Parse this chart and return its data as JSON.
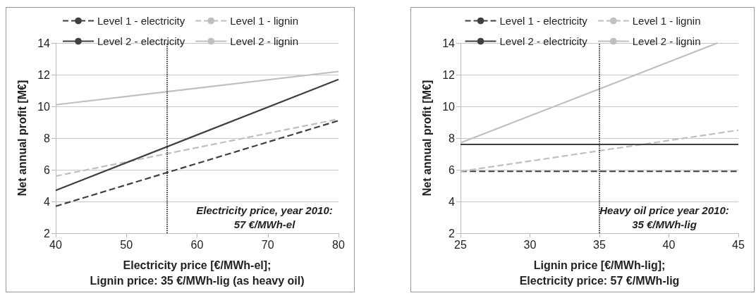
{
  "chart_data": [
    {
      "type": "line",
      "xlabel": "Electricity price [€/MWh-el];\nLignin price: 35 €/MWh-lig (as heavy oil)",
      "ylabel": "Net annual profit [M€]",
      "x": [
        40,
        80
      ],
      "xlim": [
        40,
        80
      ],
      "xticks": [
        40,
        50,
        60,
        70,
        80
      ],
      "ylim": [
        2,
        14
      ],
      "yticks": [
        2,
        4,
        6,
        8,
        10,
        12,
        14
      ],
      "grid": "y",
      "legend": "top",
      "marker": "none",
      "series": [
        {
          "name": "Level 1 - electricity",
          "color": "#404040",
          "line_style": "dashed",
          "values": [
            3.7,
            9.1
          ]
        },
        {
          "name": "Level 1 - lignin",
          "color": "#bfbfbf",
          "line_style": "dashed",
          "values": [
            5.6,
            9.2
          ]
        },
        {
          "name": "Level 2 - electricity",
          "color": "#404040",
          "line_style": "solid",
          "values": [
            4.7,
            11.7
          ]
        },
        {
          "name": "Level 2 - lignin",
          "color": "#bfbfbf",
          "line_style": "solid",
          "values": [
            10.1,
            12.2
          ]
        }
      ],
      "ref_lines": [
        {
          "axis": "x",
          "value": 55.7,
          "line_style": "dotted",
          "color": "#000000"
        }
      ],
      "annotations": [
        "Electricity price, year 2010:\n57 €/MWh-el"
      ]
    },
    {
      "type": "line",
      "xlabel": "Lignin price [€/MWh-lig];\nElectricity price: 57 €/MWh-lig",
      "ylabel": "Net annual profit [M€]",
      "x": [
        25,
        45
      ],
      "xlim": [
        25,
        45
      ],
      "xticks": [
        25,
        30,
        35,
        40,
        45
      ],
      "ylim": [
        2,
        14
      ],
      "yticks": [
        2,
        4,
        6,
        8,
        10,
        12,
        14
      ],
      "grid": "y",
      "legend": "top",
      "marker": "none",
      "series": [
        {
          "name": "Level 1 - electricity",
          "color": "#404040",
          "line_style": "dashed",
          "values": [
            5.9,
            5.9
          ]
        },
        {
          "name": "Level 1 - lignin",
          "color": "#bfbfbf",
          "line_style": "dashed",
          "values": [
            5.9,
            8.5
          ]
        },
        {
          "name": "Level 2 - electricity",
          "color": "#404040",
          "line_style": "solid",
          "values": [
            7.6,
            7.6
          ]
        },
        {
          "name": "Level 2 - lignin",
          "color": "#bfbfbf",
          "line_style": "solid",
          "x": [
            25,
            35,
            43.5
          ],
          "values": [
            7.7,
            11.1,
            14
          ]
        }
      ],
      "ref_lines": [
        {
          "axis": "x",
          "value": 35,
          "line_style": "dotted",
          "color": "#000000"
        }
      ],
      "annotations": [
        "Heavy oil price year 2010:\n35 €/MWh-lig"
      ]
    }
  ]
}
